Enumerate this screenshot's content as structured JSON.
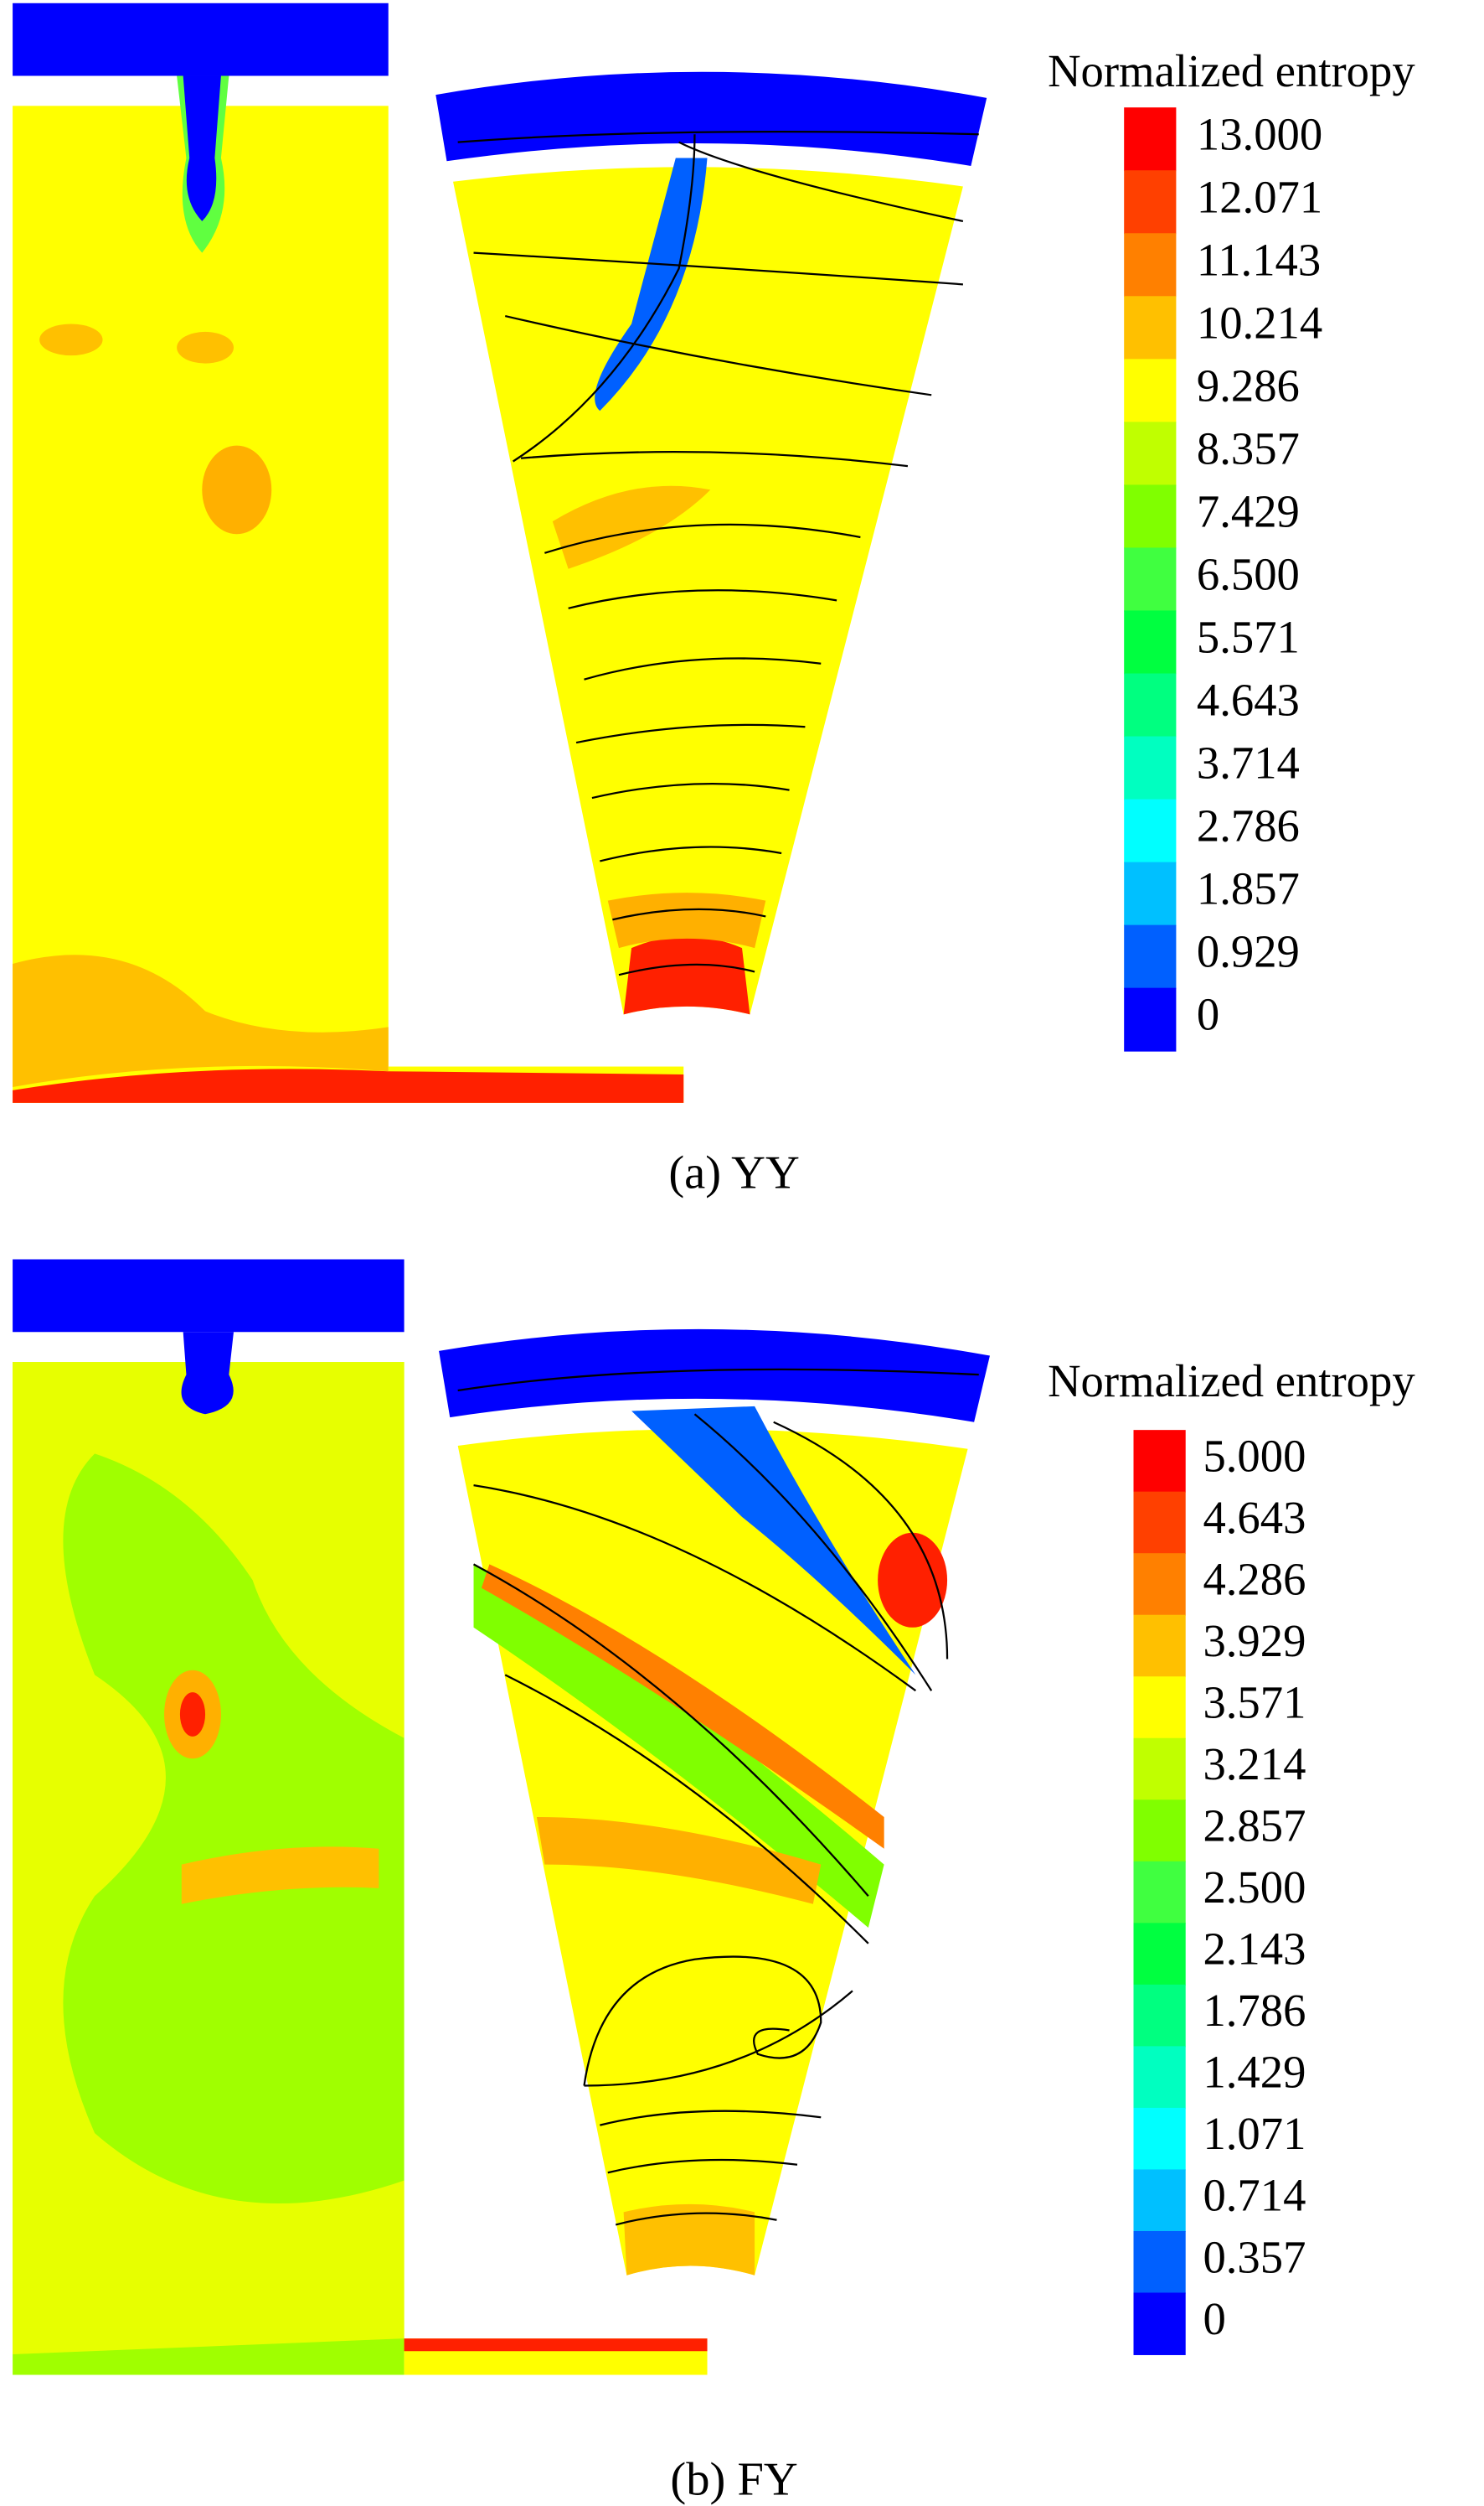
{
  "panels": [
    {
      "caption": "(a) YY",
      "colorbar": {
        "title": "Normalized entropy",
        "labels": [
          "13.000",
          "12.071",
          "11.143",
          "10.214",
          "9.286",
          "8.357",
          "7.429",
          "6.500",
          "5.571",
          "4.643",
          "3.714",
          "2.786",
          "1.857",
          "0.929",
          "0"
        ]
      }
    },
    {
      "caption": "(b) FY",
      "colorbar": {
        "title": "Normalized entropy",
        "labels": [
          "5.000",
          "4.643",
          "4.286",
          "3.929",
          "3.571",
          "3.214",
          "2.857",
          "2.500",
          "2.143",
          "1.786",
          "1.429",
          "1.071",
          "0.714",
          "0.357",
          "0"
        ]
      }
    }
  ]
}
